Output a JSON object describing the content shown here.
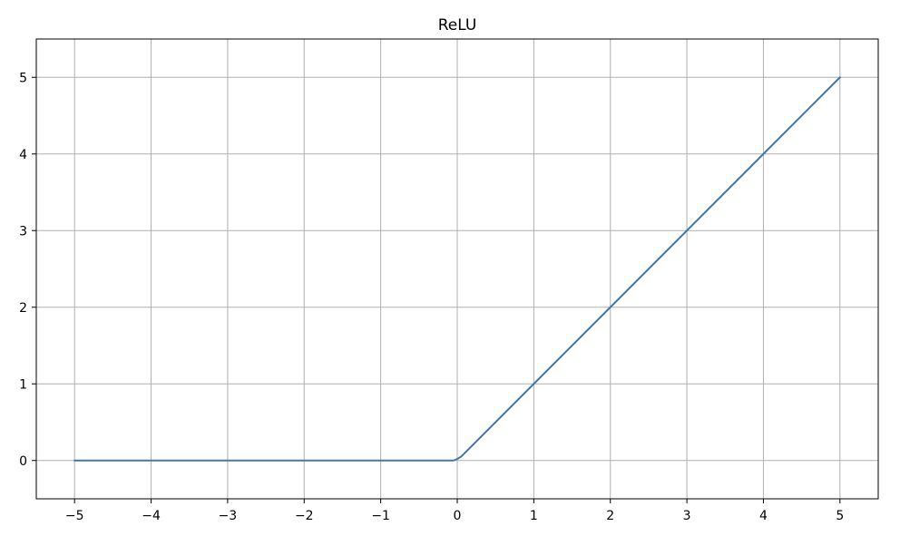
{
  "chart_data": {
    "type": "line",
    "title": "ReLU",
    "xlabel": "",
    "ylabel": "",
    "xlim": [
      -5.5,
      5.5
    ],
    "ylim": [
      -0.5,
      5.5
    ],
    "xticks": [
      -5,
      -4,
      -3,
      -2,
      -1,
      0,
      1,
      2,
      3,
      4,
      5
    ],
    "yticks": [
      0,
      1,
      2,
      3,
      4,
      5
    ],
    "xtick_labels": [
      "−5",
      "−4",
      "−3",
      "−2",
      "−1",
      "0",
      "1",
      "2",
      "3",
      "4",
      "5"
    ],
    "ytick_labels": [
      "0",
      "1",
      "2",
      "3",
      "4",
      "5"
    ],
    "grid": true,
    "series": [
      {
        "color": "#4478a4",
        "x": [
          -5,
          -4,
          -3,
          -2,
          -1,
          -0.05,
          0,
          0.05,
          1,
          2,
          3,
          4,
          5
        ],
        "y": [
          0,
          0,
          0,
          0,
          0,
          0,
          0.02,
          0.05,
          1,
          2,
          3,
          4,
          5
        ]
      }
    ]
  },
  "colors": {
    "grid": "#b0b0b0",
    "axes": "#000000",
    "background": "#ffffff"
  }
}
